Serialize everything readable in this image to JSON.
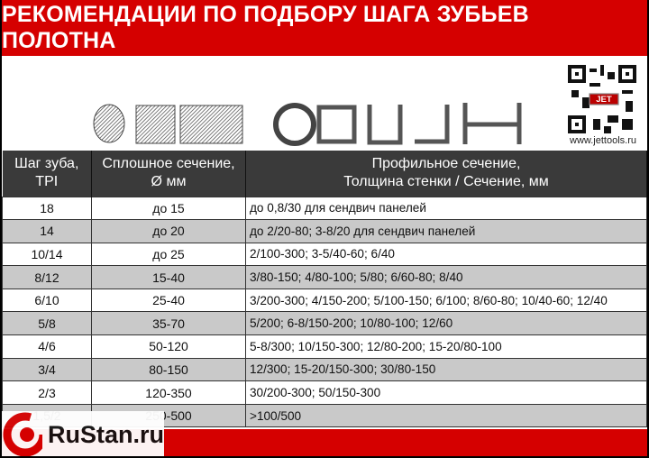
{
  "title": "РЕКОМЕНДАЦИИ ПО ПОДБОРУ ШАГА ЗУБЬЕВ ПОЛОТНА",
  "url": "www.jettools.ru",
  "qr_badge": "JET",
  "headers": [
    "Шаг зуба, TPI",
    "Сплошное сечение, Ø мм",
    "Профильное сечение, Толщина стенки / Сечение, мм"
  ],
  "header_lines": {
    "c0a": "Шаг зуба,",
    "c0b": "TPI",
    "c1a": "Сплошное сечение,",
    "c1b": "Ø мм",
    "c2a": "Профильное сечение,",
    "c2b": "Толщина стенки / Сечение, мм"
  },
  "rows": [
    {
      "tpi": "18",
      "solid": "до 15",
      "profile": "до 0,8/30 для сендвич панелей"
    },
    {
      "tpi": "14",
      "solid": "до 20",
      "profile": "до 2/20-80; 3-8/20 для сендвич панелей"
    },
    {
      "tpi": "10/14",
      "solid": "до 25",
      "profile": "2/100-300; 3-5/40-60;  6/40"
    },
    {
      "tpi": "8/12",
      "solid": "15-40",
      "profile": "3/80-150; 4/80-100; 5/80; 6/60-80; 8/40"
    },
    {
      "tpi": "6/10",
      "solid": "25-40",
      "profile": "3/200-300; 4/150-200; 5/100-150; 6/100; 8/60-80; 10/40-60; 12/40"
    },
    {
      "tpi": "5/8",
      "solid": "35-70",
      "profile": "5/200; 6-8/150-200; 10/80-100; 12/60"
    },
    {
      "tpi": "4/6",
      "solid": "50-120",
      "profile": "5-8/300; 10/150-300; 12/80-200; 15-20/80-100"
    },
    {
      "tpi": "3/4",
      "solid": "80-150",
      "profile": "12/300; 15-20/150-300; 30/80-150"
    },
    {
      "tpi": "2/3",
      "solid": "120-350",
      "profile": "30/200-300; 50/150-300"
    },
    {
      "tpi": "1,5/2",
      "solid": "250-500",
      "profile": ">100/500"
    }
  ],
  "watermark": "RuStan.ru",
  "colors": {
    "red": "#d50000",
    "header_bg": "#3a3a3a",
    "row_alt": "#c9c9c9"
  }
}
